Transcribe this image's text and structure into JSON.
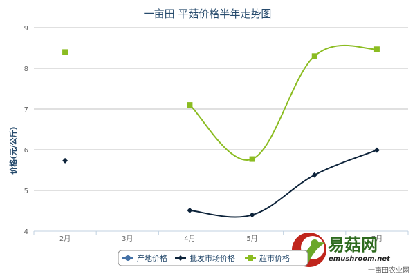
{
  "chart_data": {
    "type": "line",
    "title": "一亩田 平菇价格半年走势图",
    "xlabel": "",
    "ylabel": "价格(元/公斤)",
    "categories": [
      "2月",
      "3月",
      "4月",
      "5月",
      "6月",
      "7月"
    ],
    "ylim": [
      4,
      9
    ],
    "yticks": [
      4,
      5,
      6,
      7,
      8,
      9
    ],
    "grid": true,
    "legend_position": "bottom-center",
    "series": [
      {
        "name": "产地价格",
        "color": "#4572a7",
        "marker": "circle",
        "values": [
          null,
          null,
          null,
          null,
          null,
          null
        ]
      },
      {
        "name": "批发市场价格",
        "color": "#0d233a",
        "marker": "diamond",
        "values": [
          5.73,
          null,
          4.51,
          4.4,
          5.38,
          5.99
        ]
      },
      {
        "name": "超市价格",
        "color": "#8bbc21",
        "marker": "square",
        "values": [
          8.4,
          null,
          7.1,
          5.77,
          8.3,
          8.47
        ]
      }
    ]
  },
  "credit": "一亩田农业网",
  "watermark": {
    "name": "易菇网",
    "url": "emushroom.net"
  }
}
